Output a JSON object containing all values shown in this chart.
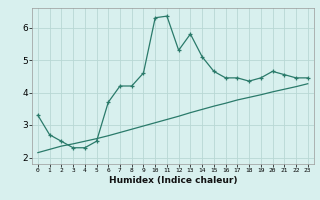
{
  "xlabel": "Humidex (Indice chaleur)",
  "x_values": [
    0,
    1,
    2,
    3,
    4,
    5,
    6,
    7,
    8,
    9,
    10,
    11,
    12,
    13,
    14,
    15,
    16,
    17,
    18,
    19,
    20,
    21,
    22,
    23
  ],
  "line1_y": [
    3.3,
    2.7,
    2.5,
    2.3,
    2.3,
    2.5,
    3.7,
    4.2,
    4.2,
    4.6,
    6.3,
    6.35,
    5.3,
    5.8,
    5.1,
    4.65,
    4.45,
    4.45,
    4.35,
    4.45,
    4.65,
    4.55,
    4.45,
    4.45
  ],
  "line2_y": [
    2.15,
    2.25,
    2.35,
    2.42,
    2.5,
    2.58,
    2.67,
    2.77,
    2.87,
    2.97,
    3.07,
    3.17,
    3.27,
    3.38,
    3.48,
    3.58,
    3.67,
    3.77,
    3.85,
    3.93,
    4.02,
    4.1,
    4.18,
    4.27
  ],
  "line_color": "#2a7a6a",
  "bg_color": "#d8f0ee",
  "grid_color": "#b8d8d4",
  "ylim": [
    1.8,
    6.6
  ],
  "xlim": [
    -0.5,
    23.5
  ],
  "yticks": [
    2,
    3,
    4,
    5,
    6
  ],
  "xticks": [
    0,
    1,
    2,
    3,
    4,
    5,
    6,
    7,
    8,
    9,
    10,
    11,
    12,
    13,
    14,
    15,
    16,
    17,
    18,
    19,
    20,
    21,
    22,
    23
  ]
}
